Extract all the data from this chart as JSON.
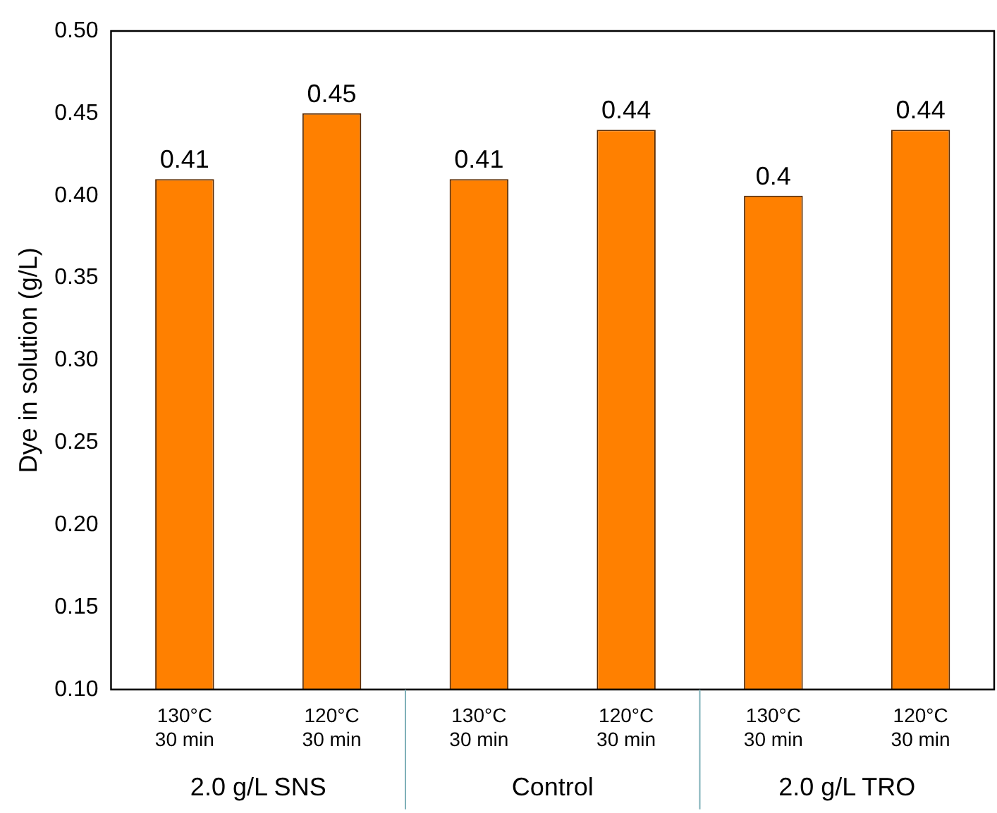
{
  "chart_data": {
    "type": "bar",
    "ylabel": "Dye in solution (g/L)",
    "categories": [
      "130°C 30 min",
      "120°C 30 min",
      "130°C 30 min",
      "120°C 30 min",
      "130°C 30 min",
      "120°C 30 min"
    ],
    "values": [
      0.41,
      0.45,
      0.41,
      0.44,
      0.4,
      0.44
    ],
    "color": "#ff8000",
    "data_labels": true,
    "ylim": [
      0.1,
      0.5
    ],
    "yticks": [
      {
        "value": 0.1,
        "label": "0.10"
      },
      {
        "value": 0.15,
        "label": "0.15"
      },
      {
        "value": 0.2,
        "label": "0.20"
      },
      {
        "value": 0.25,
        "label": "0.25"
      },
      {
        "value": 0.3,
        "label": "0.30"
      },
      {
        "value": 0.35,
        "label": "0.35"
      },
      {
        "value": 0.4,
        "label": "0.40"
      },
      {
        "value": 0.45,
        "label": "0.45"
      },
      {
        "value": 0.5,
        "label": "0.50"
      }
    ],
    "annotations": [
      "2.0 g/L SNS",
      "Control",
      "2.0 g/L TRO"
    ]
  }
}
